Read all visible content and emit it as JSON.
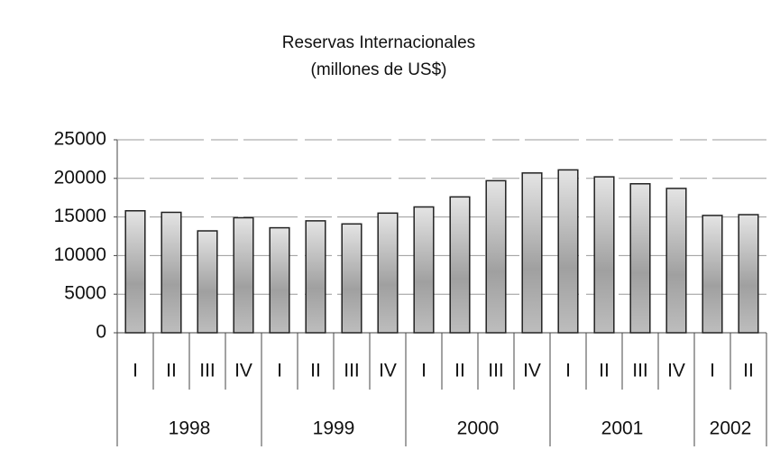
{
  "chart_data": {
    "type": "bar",
    "title": "Reservas Internacionales",
    "subtitle": "(millones de US$)",
    "categories": [
      "I",
      "II",
      "III",
      "IV",
      "I",
      "II",
      "III",
      "IV",
      "I",
      "II",
      "III",
      "IV",
      "I",
      "II",
      "III",
      "IV",
      "I",
      "II"
    ],
    "years": [
      "1998",
      "1999",
      "2000",
      "2001",
      "2002"
    ],
    "values": [
      15800,
      15600,
      13200,
      14900,
      13600,
      14500,
      14100,
      15500,
      16300,
      17600,
      19700,
      20700,
      21100,
      20200,
      19300,
      18700,
      15200,
      15300
    ],
    "color": "#a8a8a8",
    "ylim": [
      0,
      25000
    ],
    "yticks": [
      0,
      5000,
      10000,
      15000,
      20000,
      25000
    ],
    "grid": true
  }
}
